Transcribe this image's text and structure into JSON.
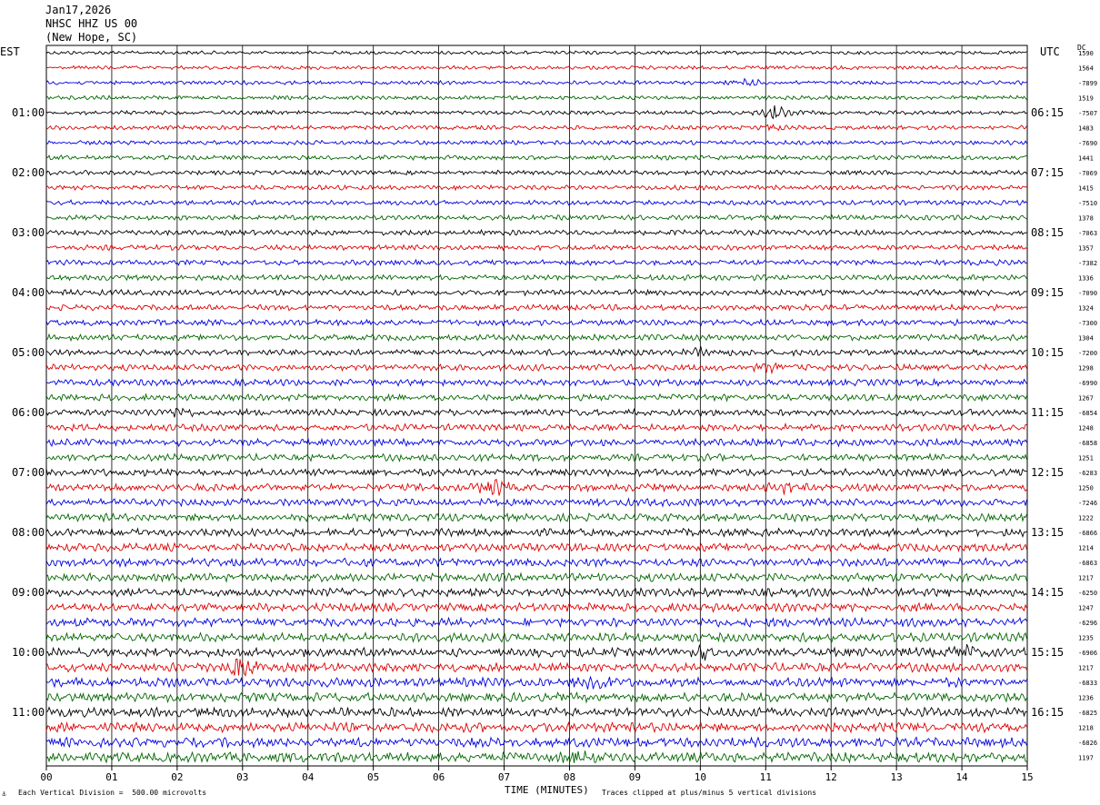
{
  "header": {
    "date": "Jan17,2026",
    "station": "NHSC HHZ US 00",
    "location": "(New Hope, SC)"
  },
  "labels": {
    "left_tz": "EST",
    "right_tz": "UTC",
    "dc": "DC"
  },
  "footer": {
    "scale": "Each Vertical Division =  500.00 microvolts",
    "xlabel": "TIME (MINUTES)",
    "clip": "Traces clipped at plus/minus 5 vertical divisions"
  },
  "chart_data": {
    "type": "line",
    "title": "",
    "xlabel": "TIME (MINUTES)",
    "xlim": [
      0,
      15
    ],
    "x_ticks": [
      "00",
      "01",
      "02",
      "03",
      "04",
      "05",
      "06",
      "07",
      "08",
      "09",
      "10",
      "11",
      "12",
      "13",
      "14",
      "15"
    ],
    "trace_colors": [
      "#000000",
      "#dd0000",
      "#0000dd",
      "#006600"
    ],
    "trace_count": 48,
    "left_hour_labels": [
      "01:00",
      "02:00",
      "03:00",
      "04:00",
      "05:00",
      "06:00",
      "07:00",
      "08:00",
      "09:00",
      "10:00",
      "11:00"
    ],
    "right_hour_labels": [
      "06:15",
      "07:15",
      "08:15",
      "09:15",
      "10:15",
      "11:15",
      "12:15",
      "13:15",
      "14:15",
      "15:15",
      "16:15"
    ],
    "dc_offsets": [
      "1590",
      "1564",
      "-7899",
      "1519",
      "-7507",
      "1483",
      "-7690",
      "1441",
      "-7069",
      "1415",
      "-7510",
      "1378",
      "-7063",
      "1357",
      "-7382",
      "1336",
      "-7090",
      "1324",
      "-7300",
      "1304",
      "-7200",
      "1298",
      "-6990",
      "1267",
      "-6854",
      "1248",
      "-6858",
      "1251",
      "-6283",
      "1250",
      "-7246",
      "1222",
      "-6866",
      "1214",
      "-6863",
      "1217",
      "-6250",
      "1247",
      "-6296",
      "1235",
      "-6906",
      "1217",
      "-6833",
      "1236",
      "-6825",
      "1218",
      "-6826",
      "1197"
    ],
    "events": [
      {
        "trace": 2,
        "minute": 10.7,
        "amplitude": 2.2
      },
      {
        "trace": 4,
        "minute": 11.15,
        "amplitude": 3.4
      },
      {
        "trace": 5,
        "minute": 11.1,
        "amplitude": 1.2
      },
      {
        "trace": 20,
        "minute": 10.05,
        "amplitude": 1.3
      },
      {
        "trace": 21,
        "minute": 11.1,
        "amplitude": 1.8
      },
      {
        "trace": 24,
        "minute": 2.05,
        "amplitude": 1.2
      },
      {
        "trace": 29,
        "minute": 6.85,
        "amplitude": 2.4
      },
      {
        "trace": 29,
        "minute": 11.3,
        "amplitude": 1.3
      },
      {
        "trace": 40,
        "minute": 10.05,
        "amplitude": 1.4
      },
      {
        "trace": 40,
        "minute": 14.05,
        "amplitude": 1.4
      },
      {
        "trace": 41,
        "minute": 2.95,
        "amplitude": 3.6
      },
      {
        "trace": 42,
        "minute": 8.4,
        "amplitude": 1.6
      },
      {
        "trace": 47,
        "minute": 8.1,
        "amplitude": 1.2
      }
    ]
  }
}
